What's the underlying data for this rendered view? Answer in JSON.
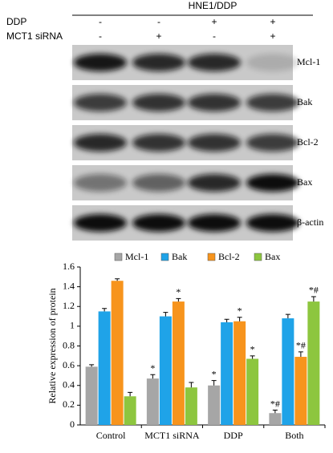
{
  "blot": {
    "header": "HNE1/DDP",
    "conditions": [
      {
        "label": "DDP",
        "signs": [
          "-",
          "-",
          "+",
          "+"
        ]
      },
      {
        "label": "MCT1 siRNA",
        "signs": [
          "-",
          "+",
          "-",
          "+"
        ]
      }
    ],
    "bands": [
      "Mcl-1",
      "Bak",
      "Bcl-2",
      "Bax",
      "β-actin"
    ]
  },
  "chart_data": {
    "type": "bar",
    "ylabel": "Relative expression of protein",
    "categories": [
      "Control",
      "MCT1 siRNA",
      "DDP",
      "Both"
    ],
    "series": [
      {
        "name": "Mcl-1",
        "color": "#a6a6a6",
        "values": [
          0.59,
          0.47,
          0.4,
          0.12
        ],
        "errors": [
          0.02,
          0.04,
          0.05,
          0.03
        ],
        "annotations": [
          null,
          "*",
          "*",
          "*#"
        ]
      },
      {
        "name": "Bak",
        "color": "#1fa3e8",
        "values": [
          1.15,
          1.1,
          1.04,
          1.08
        ],
        "errors": [
          0.03,
          0.04,
          0.03,
          0.04
        ],
        "annotations": [
          null,
          null,
          null,
          null
        ]
      },
      {
        "name": "Bcl-2",
        "color": "#f7941d",
        "values": [
          1.46,
          1.25,
          1.05,
          0.69
        ],
        "errors": [
          0.02,
          0.03,
          0.04,
          0.05
        ],
        "annotations": [
          null,
          "*",
          "*",
          "*#"
        ]
      },
      {
        "name": "Bax",
        "color": "#8dc63f",
        "values": [
          0.29,
          0.38,
          0.67,
          1.25
        ],
        "errors": [
          0.04,
          0.05,
          0.03,
          0.05
        ],
        "annotations": [
          null,
          null,
          "*",
          "*#"
        ]
      }
    ],
    "ylim": [
      0,
      1.6
    ],
    "yticks": [
      0,
      0.2,
      0.4,
      0.6,
      0.8,
      1,
      1.2,
      1.4,
      1.6
    ]
  }
}
